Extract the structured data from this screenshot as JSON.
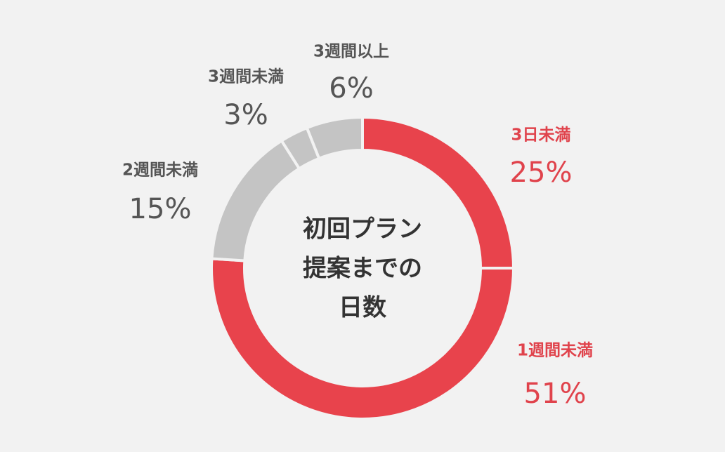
{
  "chart_data": {
    "type": "donut",
    "center_label": [
      "初回プラン",
      "提案までの",
      "日数"
    ],
    "categories": [
      "3日未満",
      "1週間未満",
      "2週間未満",
      "3週間未満",
      "3週間以上"
    ],
    "values": [
      25,
      51,
      15,
      3,
      6
    ],
    "value_labels": [
      "25%",
      "51%",
      "15%",
      "3%",
      "6%"
    ],
    "colors": [
      "#e8434c",
      "#e8434c",
      "#c4c4c4",
      "#c4c4c4",
      "#c4c4c4"
    ],
    "label_colors": [
      "#e0434c",
      "#e0434c",
      "#555555",
      "#555555",
      "#555555"
    ]
  }
}
